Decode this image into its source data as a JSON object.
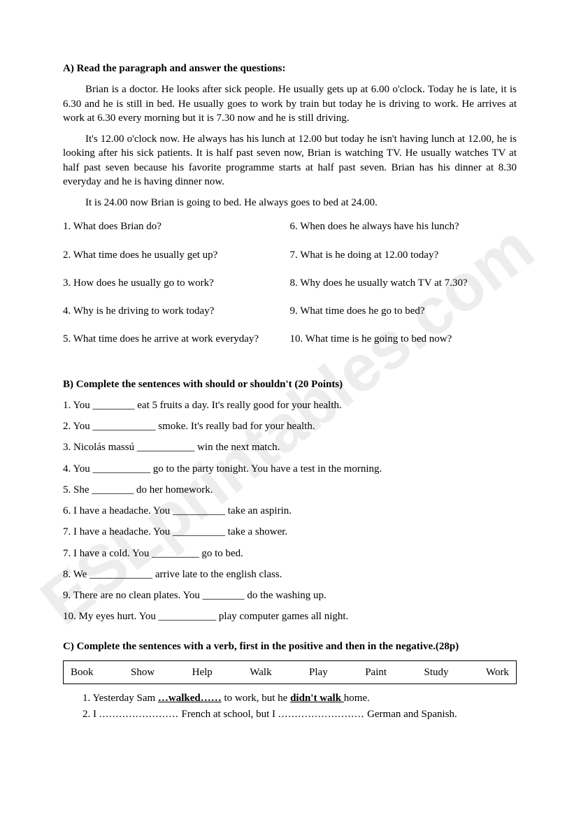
{
  "watermark": "ESLprintables.com",
  "sectionA": {
    "title": "A) Read the paragraph and answer the questions:",
    "paragraphs": [
      "Brian is a doctor. He looks after sick people. He usually gets up at 6.00 o'clock. Today he is late, it is 6.30 and he is still in bed. He usually goes to work by train but today he is driving to work. He arrives at work at 6.30 every morning but it is 7.30 now and he is still driving.",
      "It's 12.00 o'clock now. He always has his lunch at 12.00 but today he isn't having lunch at 12.00, he is looking after his sick patients. It is half past seven now, Brian is watching TV. He usually watches TV at half past seven because his favorite programme starts at half past seven. Brian has his dinner at 8.30 everyday and he is having dinner now.",
      "It is 24.00 now Brian is going to bed. He always goes to bed at 24.00."
    ],
    "questions_left": [
      "1. What does Brian do?",
      "2. What time does he usually get up?",
      "3. How does he usually go to work?",
      "4. Why is he driving to work today?",
      "5. What time does he arrive at work everyday?"
    ],
    "questions_right": [
      "6. When does he always have his lunch?",
      "7. What is he doing at 12.00 today?",
      "8. Why does he usually watch TV at 7.30?",
      "9. What time does he go to bed?",
      "10. What time is he going to bed now?"
    ]
  },
  "sectionB": {
    "title": "B) Complete the sentences with should or shouldn't (20 Points)",
    "items": [
      "1. You ________ eat 5 fruits a day. It's really good for your health.",
      "2. You ____________ smoke. It's really bad for your health.",
      "3. Nicolás massú ___________ win the next match.",
      "4. You ___________ go to the party tonight. You have a test in the morning.",
      "5. She ________ do her homework.",
      "6. I have a headache. You __________ take an aspirin.",
      "7. I have a headache. You __________ take a shower.",
      "7. I have a cold. You _________ go to bed.",
      "8. We ____________ arrive late to the english class.",
      "9. There are no clean plates. You ________ do the washing up.",
      "10. My eyes hurt. You ___________ play computer games all night."
    ]
  },
  "sectionC": {
    "title": "C) Complete the sentences with a verb, first in the positive and then in the negative.(28p)",
    "verbs": [
      "Book",
      "Show",
      "Help",
      "Walk",
      "Play",
      "Paint",
      "Study",
      "Work"
    ],
    "item1_pre": "1.   Yesterday Sam ",
    "item1_walked": "…walked……",
    "item1_mid": " to work, but he ",
    "item1_didnt": "didn't walk ",
    "item1_post": " home.",
    "item2_pre": "2.   I ",
    "item2_blank1": "........................",
    "item2_mid": " French at school, but I ",
    "item2_blank2": "..........................",
    "item2_post": " German and Spanish."
  }
}
